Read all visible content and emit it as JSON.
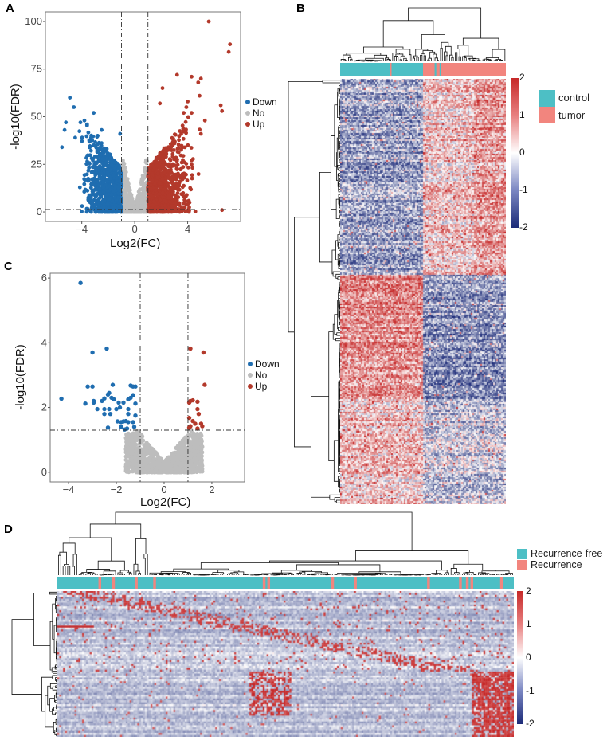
{
  "panels": {
    "A": "A",
    "B": "B",
    "C": "C",
    "D": "D"
  },
  "colors": {
    "down": "#1f6db0",
    "no": "#bdbdbd",
    "up": "#b3392b",
    "control": "#4dbfc5",
    "tumor": "#f2857e",
    "recurrence_free": "#4dbfc5",
    "recurrence": "#f2857e"
  },
  "chart_data": [
    {
      "id": "A",
      "type": "scatter",
      "title": "",
      "xlabel": "Log2(FC)",
      "ylabel": "-log10(FDR)",
      "xlim": [
        -6.75,
        8.0
      ],
      "ylim": [
        -5,
        105
      ],
      "xticks": [
        -4,
        0,
        4
      ],
      "yticks": [
        0,
        25,
        50,
        75,
        100
      ],
      "thresholds": {
        "log2fc": [
          -1,
          1
        ],
        "neglog10fdr": 1.3
      },
      "legend": {
        "position": "right",
        "entries": [
          "Down",
          "No",
          "Up"
        ]
      },
      "cloud_counts": {
        "Down": 900,
        "No": 700,
        "Up": 950
      },
      "outliers": {
        "Down": [
          [
            -4.9,
            60
          ],
          [
            -4.6,
            55
          ],
          [
            -3.1,
            52
          ],
          [
            -5.2,
            47
          ],
          [
            -5.3,
            43
          ],
          [
            -5.5,
            34
          ],
          [
            -3.8,
            48
          ],
          [
            -4.1,
            47
          ],
          [
            -3.6,
            46
          ],
          [
            -2.5,
            43
          ],
          [
            -1.1,
            41
          ],
          [
            -4.5,
            39
          ],
          [
            -3.3,
            39
          ],
          [
            -2.8,
            40
          ]
        ],
        "Up": [
          [
            5.6,
            100
          ],
          [
            7.2,
            88
          ],
          [
            7.1,
            84
          ],
          [
            3.2,
            72
          ],
          [
            4.3,
            71
          ],
          [
            5.0,
            70
          ],
          [
            4.8,
            68
          ],
          [
            2.1,
            65
          ],
          [
            4.9,
            61
          ],
          [
            4.0,
            58
          ],
          [
            1.9,
            57
          ],
          [
            6.5,
            56
          ],
          [
            6.6,
            53
          ],
          [
            3.9,
            55
          ],
          [
            4.3,
            52
          ],
          [
            3.7,
            52
          ],
          [
            5.3,
            48
          ],
          [
            5.0,
            41
          ],
          [
            6.6,
            1
          ]
        ]
      }
    },
    {
      "id": "C",
      "type": "scatter",
      "title": "",
      "xlabel": "Log2(FC)",
      "ylabel": "-log10(FDR)",
      "xlim": [
        -4.77,
        3.37
      ],
      "ylim": [
        -0.3,
        6.15
      ],
      "xticks": [
        -4,
        -2,
        0,
        2
      ],
      "yticks": [
        0,
        2,
        4,
        6
      ],
      "thresholds": {
        "log2fc": [
          -1,
          1
        ],
        "neglog10fdr": 1.3
      },
      "legend": {
        "position": "right",
        "entries": [
          "Down",
          "No",
          "Up"
        ]
      },
      "cloud_counts": {
        "No": 1100
      },
      "points": {
        "Down": [
          [
            -3.5,
            5.85
          ],
          [
            -2.4,
            3.82
          ],
          [
            -3.0,
            3.7
          ],
          [
            -4.3,
            2.27
          ],
          [
            -3.2,
            2.65
          ],
          [
            -3.0,
            2.65
          ],
          [
            -2.15,
            2.7
          ],
          [
            -1.4,
            2.68
          ],
          [
            -1.3,
            2.65
          ],
          [
            -1.2,
            2.65
          ],
          [
            -3.3,
            2.12
          ],
          [
            -2.95,
            2.2
          ],
          [
            -2.95,
            2.15
          ],
          [
            -2.6,
            2.2
          ],
          [
            -2.5,
            2.28
          ],
          [
            -2.35,
            2.4
          ],
          [
            -2.3,
            2.45
          ],
          [
            -2.2,
            2.3
          ],
          [
            -2.1,
            2.25
          ],
          [
            -1.9,
            2.15
          ],
          [
            -1.7,
            2.15
          ],
          [
            -1.5,
            2.25
          ],
          [
            -1.4,
            2.3
          ],
          [
            -1.3,
            2.38
          ],
          [
            -1.2,
            2.12
          ],
          [
            -2.8,
            1.95
          ],
          [
            -2.5,
            1.95
          ],
          [
            -2.3,
            1.95
          ],
          [
            -2.0,
            1.95
          ],
          [
            -1.85,
            2.0
          ],
          [
            -1.5,
            1.95
          ],
          [
            -2.5,
            1.8
          ],
          [
            -2.25,
            1.8
          ],
          [
            -1.5,
            1.8
          ],
          [
            -1.2,
            1.75
          ],
          [
            -1.95,
            1.57
          ],
          [
            -1.8,
            1.55
          ],
          [
            -1.7,
            1.57
          ],
          [
            -1.6,
            1.58
          ],
          [
            -1.5,
            1.55
          ],
          [
            -1.3,
            1.55
          ],
          [
            -1.8,
            1.4
          ],
          [
            -1.55,
            1.35
          ],
          [
            -1.25,
            1.4
          ],
          [
            -1.65,
            1.32
          ],
          [
            -2.35,
            1.38
          ]
        ],
        "Up": [
          [
            1.1,
            3.82
          ],
          [
            1.65,
            3.7
          ],
          [
            1.7,
            2.7
          ],
          [
            1.05,
            2.15
          ],
          [
            1.1,
            2.2
          ],
          [
            1.2,
            2.22
          ],
          [
            1.4,
            2.18
          ],
          [
            1.4,
            1.95
          ],
          [
            1.45,
            1.8
          ],
          [
            1.05,
            1.68
          ],
          [
            1.2,
            1.58
          ],
          [
            1.3,
            1.5
          ],
          [
            1.55,
            1.5
          ],
          [
            1.6,
            1.42
          ],
          [
            1.1,
            1.42
          ],
          [
            1.05,
            1.38
          ],
          [
            1.4,
            1.35
          ]
        ]
      }
    },
    {
      "id": "B",
      "type": "heatmap",
      "colorbar": {
        "range": [
          -2,
          2
        ],
        "ticks": [
          "2",
          "1",
          "0",
          "-1",
          "-2"
        ],
        "low": "#1b2a78",
        "mid": "#ffffff",
        "high": "#c62828"
      },
      "legend": [
        "control",
        "tumor"
      ],
      "groups": [
        {
          "name": "control",
          "fraction": 0.5
        },
        {
          "name": "tumor",
          "fraction": 0.5
        }
      ],
      "row_clusters": [
        {
          "fraction": 0.46,
          "control": -0.7,
          "tumor": 0.4
        },
        {
          "fraction": 0.54,
          "control": 0.9,
          "tumor": -0.9
        }
      ]
    },
    {
      "id": "D",
      "type": "heatmap",
      "colorbar": {
        "range": [
          -2,
          2
        ],
        "ticks": [
          "2",
          "1",
          "0",
          "-1",
          "-2"
        ],
        "low": "#1b2a78",
        "mid": "#ffffff",
        "high": "#c62828"
      },
      "legend": [
        "Recurrence-free",
        "Recurrence"
      ],
      "recurrence_columns_fraction": [
        0.09,
        0.12,
        0.17,
        0.21,
        0.45,
        0.46,
        0.6,
        0.65,
        0.81,
        0.88,
        0.895,
        0.905,
        0.97
      ]
    }
  ]
}
